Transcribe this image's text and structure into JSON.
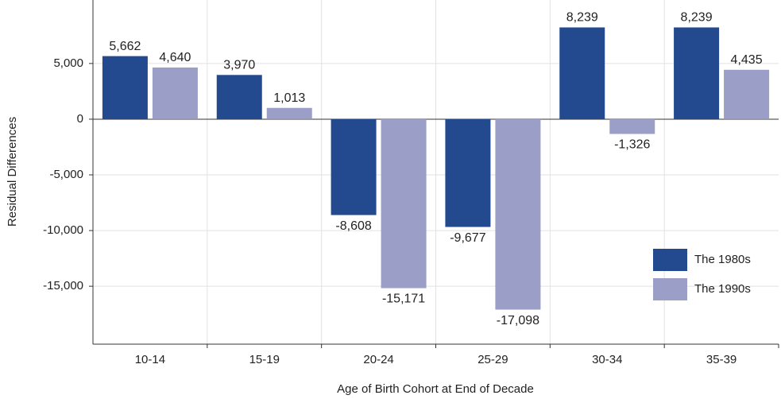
{
  "chart_data": {
    "type": "bar",
    "x_label": "Age of Birth Cohort at End of Decade",
    "y_label": "Residual Differences",
    "categories": [
      "10-14",
      "15-19",
      "20-24",
      "25-29",
      "30-34",
      "35-39"
    ],
    "series": [
      {
        "name": "The 1980s",
        "color": "#234a8f",
        "values": [
          5662,
          3970,
          -8608,
          -9677,
          8239,
          8239
        ],
        "value_labels": [
          "5,662",
          "3,970",
          "-8,608",
          "-9,677",
          "8,239",
          "8,239"
        ]
      },
      {
        "name": "The 1990s",
        "color": "#9b9fc8",
        "values": [
          4640,
          1013,
          -15171,
          -17098,
          -1326,
          4435
        ],
        "value_labels": [
          "4,640",
          "1,013",
          "-15,171",
          "-17,098",
          "-1,326",
          "4,435"
        ]
      }
    ],
    "ylim": [
      -20200,
      10700
    ],
    "yticks": [
      {
        "value": -15000,
        "label": "-15,000"
      },
      {
        "value": -10000,
        "label": "-10,000"
      },
      {
        "value": -5000,
        "label": "-5,000"
      },
      0,
      {
        "value": 5000,
        "label": "5,000"
      }
    ],
    "grid": true,
    "legend": "lower right"
  }
}
